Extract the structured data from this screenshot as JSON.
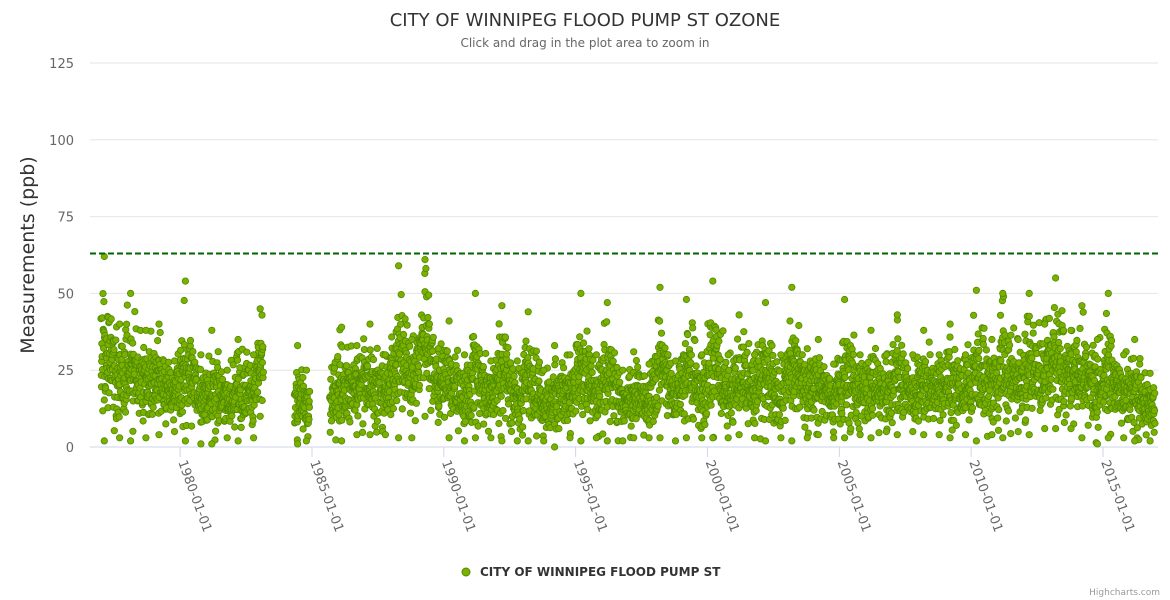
{
  "chart_data": {
    "type": "scatter",
    "title": "CITY OF WINNIPEG FLOOD PUMP ST OZONE",
    "subtitle": "Click and drag in the plot area to zoom in",
    "ylabel": "Measurements (ppb)",
    "xlabel": "",
    "ylim": [
      0,
      125
    ],
    "xlim": [
      "1976-08-01",
      "2017-02-01"
    ],
    "y_ticks": [
      0,
      25,
      50,
      75,
      100,
      125
    ],
    "x_ticks": [
      "1980-01-01",
      "1985-01-01",
      "1990-01-01",
      "1995-01-01",
      "2000-01-01",
      "2005-01-01",
      "2010-01-01",
      "2015-01-01"
    ],
    "threshold_line": {
      "value": 63,
      "color": "#006400",
      "style": "dashed"
    },
    "grid": true,
    "legend_position": "bottom-center",
    "series": [
      {
        "name": "CITY OF WINNIPEG FLOOD PUMP ST",
        "color": "#7cb000",
        "outline": "#4e8a00",
        "sampling": "daily",
        "data_gaps": [
          [
            "1983-03-01",
            "1984-05-01"
          ],
          [
            "1984-12-01",
            "1985-09-01"
          ]
        ],
        "monthly_ranges": [
          {
            "month": "1977-02",
            "min": 2,
            "max": 62
          },
          {
            "month": "1977-09",
            "min": 3,
            "max": 40
          },
          {
            "month": "1978-02",
            "min": 2,
            "max": 50
          },
          {
            "month": "1978-09",
            "min": 3,
            "max": 38
          },
          {
            "month": "1979-03",
            "min": 4,
            "max": 40
          },
          {
            "month": "1979-10",
            "min": 5,
            "max": 28
          },
          {
            "month": "1980-03",
            "min": 2,
            "max": 54
          },
          {
            "month": "1980-10",
            "min": 1,
            "max": 30
          },
          {
            "month": "1981-03",
            "min": 1,
            "max": 38
          },
          {
            "month": "1981-10",
            "min": 3,
            "max": 25
          },
          {
            "month": "1982-03",
            "min": 2,
            "max": 35
          },
          {
            "month": "1982-10",
            "min": 3,
            "max": 30
          },
          {
            "month": "1983-01",
            "min": 10,
            "max": 45
          },
          {
            "month": "1984-06",
            "min": 1,
            "max": 33
          },
          {
            "month": "1984-10",
            "min": 2,
            "max": 25
          },
          {
            "month": "1986-02",
            "min": 2,
            "max": 39
          },
          {
            "month": "1986-09",
            "min": 4,
            "max": 33
          },
          {
            "month": "1987-03",
            "min": 4,
            "max": 40
          },
          {
            "month": "1987-10",
            "min": 4,
            "max": 30
          },
          {
            "month": "1988-04",
            "min": 3,
            "max": 59
          },
          {
            "month": "1988-10",
            "min": 3,
            "max": 35
          },
          {
            "month": "1989-04",
            "min": 10,
            "max": 61
          },
          {
            "month": "1989-10",
            "min": 8,
            "max": 32
          },
          {
            "month": "1990-03",
            "min": 3,
            "max": 41
          },
          {
            "month": "1990-10",
            "min": 2,
            "max": 30
          },
          {
            "month": "1991-03",
            "min": 3,
            "max": 50
          },
          {
            "month": "1991-10",
            "min": 3,
            "max": 28
          },
          {
            "month": "1992-03",
            "min": 2,
            "max": 46
          },
          {
            "month": "1992-10",
            "min": 2,
            "max": 28
          },
          {
            "month": "1993-03",
            "min": 2,
            "max": 44
          },
          {
            "month": "1993-10",
            "min": 2,
            "max": 25
          },
          {
            "month": "1994-03",
            "min": 0,
            "max": 33
          },
          {
            "month": "1994-10",
            "min": 3,
            "max": 30
          },
          {
            "month": "1995-03",
            "min": 2,
            "max": 50
          },
          {
            "month": "1995-10",
            "min": 3,
            "max": 30
          },
          {
            "month": "1996-03",
            "min": 2,
            "max": 47
          },
          {
            "month": "1996-10",
            "min": 2,
            "max": 25
          },
          {
            "month": "1997-03",
            "min": 3,
            "max": 31
          },
          {
            "month": "1997-10",
            "min": 3,
            "max": 27
          },
          {
            "month": "1998-03",
            "min": 3,
            "max": 52
          },
          {
            "month": "1998-10",
            "min": 2,
            "max": 28
          },
          {
            "month": "1999-03",
            "min": 3,
            "max": 48
          },
          {
            "month": "1999-10",
            "min": 3,
            "max": 30
          },
          {
            "month": "2000-03",
            "min": 3,
            "max": 54
          },
          {
            "month": "2000-10",
            "min": 3,
            "max": 30
          },
          {
            "month": "2001-03",
            "min": 4,
            "max": 43
          },
          {
            "month": "2001-10",
            "min": 3,
            "max": 30
          },
          {
            "month": "2002-03",
            "min": 2,
            "max": 47
          },
          {
            "month": "2002-10",
            "min": 3,
            "max": 30
          },
          {
            "month": "2003-03",
            "min": 2,
            "max": 52
          },
          {
            "month": "2003-10",
            "min": 3,
            "max": 32
          },
          {
            "month": "2004-03",
            "min": 4,
            "max": 35
          },
          {
            "month": "2004-10",
            "min": 3,
            "max": 27
          },
          {
            "month": "2005-03",
            "min": 3,
            "max": 48
          },
          {
            "month": "2005-10",
            "min": 4,
            "max": 30
          },
          {
            "month": "2006-03",
            "min": 3,
            "max": 38
          },
          {
            "month": "2006-10",
            "min": 5,
            "max": 30
          },
          {
            "month": "2007-03",
            "min": 4,
            "max": 43
          },
          {
            "month": "2007-10",
            "min": 5,
            "max": 30
          },
          {
            "month": "2008-03",
            "min": 4,
            "max": 38
          },
          {
            "month": "2008-10",
            "min": 4,
            "max": 30
          },
          {
            "month": "2009-03",
            "min": 3,
            "max": 40
          },
          {
            "month": "2009-10",
            "min": 4,
            "max": 30
          },
          {
            "month": "2010-03",
            "min": 2,
            "max": 51
          },
          {
            "month": "2010-10",
            "min": 4,
            "max": 35
          },
          {
            "month": "2011-03",
            "min": 3,
            "max": 50
          },
          {
            "month": "2011-10",
            "min": 5,
            "max": 35
          },
          {
            "month": "2012-03",
            "min": 4,
            "max": 50
          },
          {
            "month": "2012-10",
            "min": 6,
            "max": 40
          },
          {
            "month": "2013-03",
            "min": 6,
            "max": 55
          },
          {
            "month": "2013-10",
            "min": 6,
            "max": 38
          },
          {
            "month": "2014-03",
            "min": 3,
            "max": 46
          },
          {
            "month": "2014-10",
            "min": 1,
            "max": 35
          },
          {
            "month": "2015-03",
            "min": 3,
            "max": 50
          },
          {
            "month": "2015-10",
            "min": 3,
            "max": 30
          },
          {
            "month": "2016-03",
            "min": 2,
            "max": 35
          },
          {
            "month": "2016-10",
            "min": 2,
            "max": 24
          }
        ]
      }
    ]
  },
  "credits": "Highcharts.com"
}
